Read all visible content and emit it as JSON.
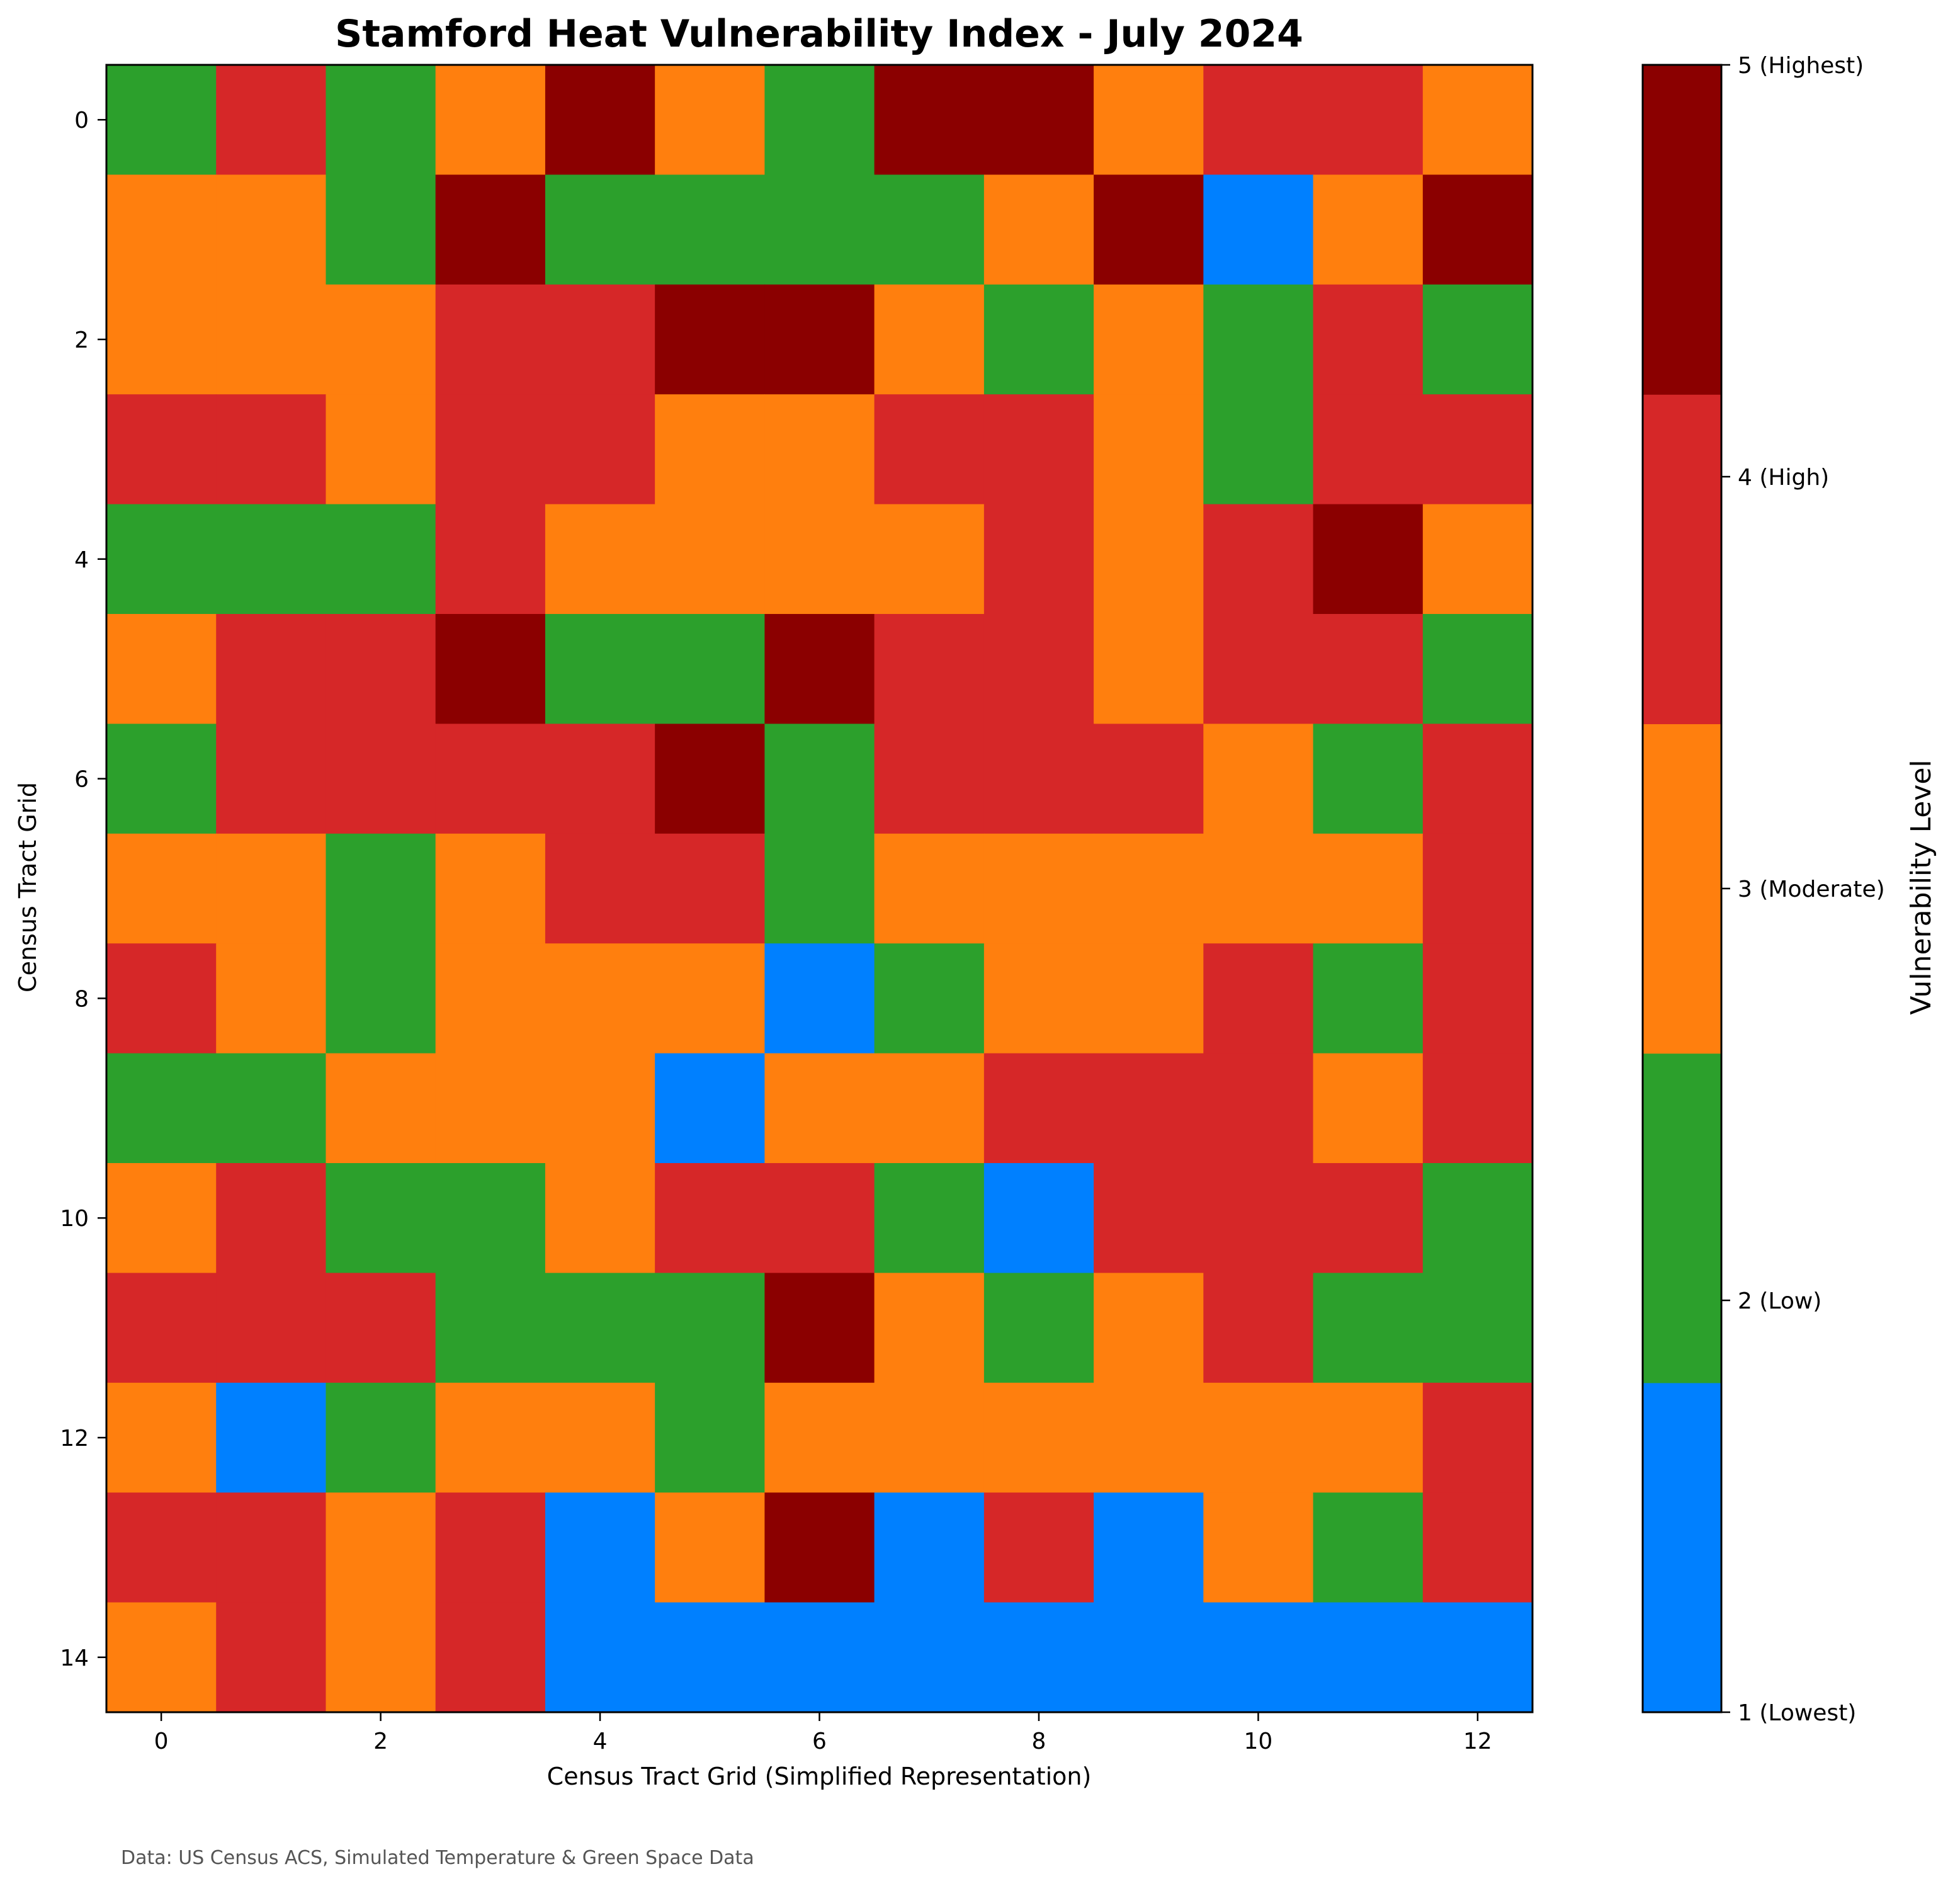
{
  "chart_data": {
    "type": "heatmap",
    "title": "Stamford Heat Vulnerability Index - July 2024",
    "xlabel": "Census Tract Grid (Simplified Representation)",
    "ylabel": "Census Tract Grid",
    "x_ticks": [
      "0",
      "2",
      "4",
      "6",
      "8",
      "10",
      "12"
    ],
    "y_ticks": [
      "0",
      "2",
      "4",
      "6",
      "8",
      "10",
      "12",
      "14"
    ],
    "x_range": [
      0,
      12
    ],
    "y_range": [
      0,
      14
    ],
    "grid": false,
    "colorbar": {
      "label": "Vulnerability Level",
      "position": "right",
      "levels": [
        {
          "value": 1,
          "label": "1 (Lowest)",
          "color": "#0080ff"
        },
        {
          "value": 2,
          "label": "2 (Low)",
          "color": "#2ca02c"
        },
        {
          "value": 3,
          "label": "3 (Moderate)",
          "color": "#ff7f0e"
        },
        {
          "value": 4,
          "label": "4 (High)",
          "color": "#d62728"
        },
        {
          "value": 5,
          "label": "5 (Highest)",
          "color": "#8b0000"
        }
      ]
    },
    "values": [
      [
        2,
        4,
        2,
        3,
        5,
        3,
        2,
        5,
        5,
        3,
        4,
        4,
        3
      ],
      [
        3,
        3,
        2,
        5,
        2,
        2,
        2,
        2,
        3,
        5,
        1,
        3,
        5
      ],
      [
        3,
        3,
        3,
        4,
        4,
        5,
        5,
        3,
        2,
        3,
        2,
        4,
        2
      ],
      [
        4,
        4,
        3,
        4,
        4,
        3,
        3,
        4,
        4,
        3,
        2,
        4,
        4
      ],
      [
        2,
        2,
        2,
        4,
        3,
        3,
        3,
        3,
        4,
        3,
        4,
        5,
        3
      ],
      [
        3,
        4,
        4,
        5,
        2,
        2,
        5,
        4,
        4,
        3,
        4,
        4,
        2
      ],
      [
        2,
        4,
        4,
        4,
        4,
        5,
        2,
        4,
        4,
        4,
        3,
        2,
        4
      ],
      [
        3,
        3,
        2,
        3,
        4,
        4,
        2,
        3,
        3,
        3,
        3,
        3,
        4
      ],
      [
        4,
        3,
        2,
        3,
        3,
        3,
        1,
        2,
        3,
        3,
        4,
        2,
        4
      ],
      [
        2,
        2,
        3,
        3,
        3,
        1,
        3,
        3,
        4,
        4,
        4,
        3,
        4
      ],
      [
        3,
        4,
        2,
        2,
        3,
        4,
        4,
        2,
        1,
        4,
        4,
        4,
        2
      ],
      [
        4,
        4,
        4,
        2,
        2,
        2,
        5,
        3,
        2,
        3,
        4,
        2,
        2
      ],
      [
        3,
        1,
        2,
        3,
        3,
        2,
        3,
        3,
        3,
        3,
        3,
        3,
        4
      ],
      [
        4,
        4,
        3,
        4,
        1,
        3,
        5,
        1,
        4,
        1,
        3,
        2,
        4
      ],
      [
        3,
        4,
        3,
        4,
        1,
        1,
        1,
        1,
        1,
        1,
        1,
        1,
        1
      ]
    ]
  },
  "footnote": "Data: US Census ACS, Simulated Temperature & Green Space Data"
}
